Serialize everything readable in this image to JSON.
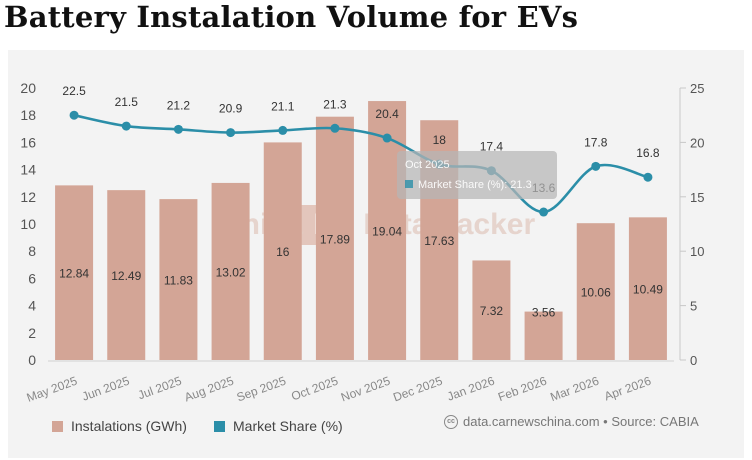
{
  "title": "Battery Instalation Volume for EVs",
  "chart_data": {
    "type": "bar+line",
    "categories": [
      "May 2025",
      "Jun 2025",
      "Jul 2025",
      "Aug 2025",
      "Sep 2025",
      "Oct 2025",
      "Nov 2025",
      "Dec 2025",
      "Jan 2026",
      "Feb 2026",
      "Mar 2026",
      "Apr 2026"
    ],
    "series": [
      {
        "name": "Instalations (GWh)",
        "type": "bar",
        "axis": "left",
        "color": "#d3a596",
        "values": [
          12.84,
          12.49,
          11.83,
          13.02,
          16,
          17.89,
          19.04,
          17.63,
          7.32,
          3.56,
          10.06,
          10.49
        ]
      },
      {
        "name": "Market Share (%)",
        "type": "line",
        "axis": "right",
        "color": "#2b8ea8",
        "values": [
          22.5,
          21.5,
          21.2,
          20.9,
          21.1,
          21.3,
          20.4,
          18,
          17.4,
          13.6,
          17.8,
          16.8
        ]
      }
    ],
    "left_axis": {
      "min": 0,
      "max": 20,
      "ticks": [
        0,
        2,
        4,
        6,
        8,
        10,
        12,
        14,
        16,
        18,
        20
      ]
    },
    "right_axis": {
      "min": 0,
      "max": 25,
      "ticks": [
        0,
        5,
        10,
        15,
        20,
        25
      ]
    },
    "legend_position": "bottom-left",
    "tooltip": {
      "category": "Oct 2025",
      "series": "Market Share (%)",
      "value": 21.3
    }
  },
  "legend": {
    "bar_label": "Instalations (GWh)",
    "line_label": "Market Share (%)"
  },
  "watermark": "China EV DataTracker",
  "source": "data.carnewschina.com • Source: CABIA",
  "cc_icon_text": "cc",
  "colors": {
    "bar": "#d3a596",
    "line": "#2b8ea8",
    "background": "#f3f3f3"
  }
}
